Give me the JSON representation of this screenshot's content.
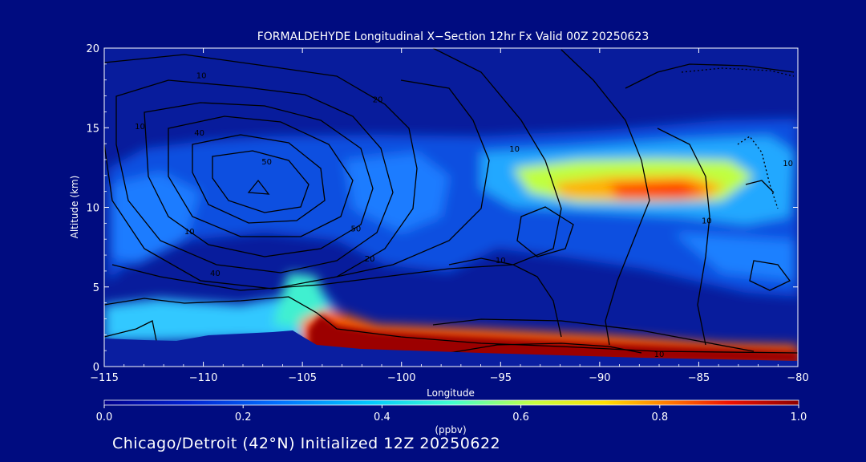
{
  "chart_data": {
    "type": "heatmap",
    "title": "FORMALDEHYDE Longitudinal X−Section 12hr  Fx Valid 00Z 20250623",
    "xlabel": "Longitude",
    "ylabel": "Altitude (km)",
    "xlim": [
      -115,
      -80
    ],
    "ylim": [
      0,
      20
    ],
    "x_ticks": [
      "−115",
      "−110",
      "−105",
      "−100",
      "−95",
      "−90",
      "−85",
      "−80"
    ],
    "x_tick_values": [
      -115,
      -110,
      -105,
      -100,
      -95,
      -90,
      -85,
      -80
    ],
    "y_ticks": [
      "0",
      "5",
      "10",
      "15",
      "20"
    ],
    "y_tick_values": [
      0,
      5,
      10,
      15,
      20
    ],
    "colorbar": {
      "label": "(ppbv)",
      "range": [
        0,
        1
      ],
      "ticks": [
        "0.0",
        "0.2",
        "0.4",
        "0.6",
        "0.8",
        "1.0"
      ],
      "tick_values": [
        0,
        0.2,
        0.4,
        0.6,
        0.8,
        1.0
      ]
    },
    "field_regions": [
      {
        "lon": [
          -114.5,
          -81
        ],
        "alt": [
          7,
          15
        ],
        "value": 0.15
      },
      {
        "lon": [
          -114,
          -103
        ],
        "alt": [
          1.5,
          3.5
        ],
        "value": 0.3
      },
      {
        "lon": [
          -106,
          -104
        ],
        "alt": [
          2,
          5
        ],
        "value": 0.45
      },
      {
        "lon": [
          -95,
          -81
        ],
        "alt": [
          9,
          13
        ],
        "value": 0.55
      },
      {
        "lon": [
          -92,
          -84
        ],
        "alt": [
          10,
          12
        ],
        "value": 0.8
      },
      {
        "lon": [
          -104.5,
          -80
        ],
        "alt": [
          0.3,
          2.5
        ],
        "value": 1.0
      }
    ],
    "contour_labels": [
      {
        "text": "10",
        "lon": -110.1,
        "alt": 18.1
      },
      {
        "text": "20",
        "lon": -101.2,
        "alt": 16.6
      },
      {
        "text": "10",
        "lon": -113.2,
        "alt": 14.9
      },
      {
        "text": "40",
        "lon": -110.2,
        "alt": 14.5
      },
      {
        "text": "50",
        "lon": -106.8,
        "alt": 12.7
      },
      {
        "text": "10",
        "lon": -94.3,
        "alt": 13.5
      },
      {
        "text": "10",
        "lon": -80.5,
        "alt": 12.6
      },
      {
        "text": "10",
        "lon": -110.7,
        "alt": 8.3
      },
      {
        "text": "50",
        "lon": -102.3,
        "alt": 8.5
      },
      {
        "text": "20",
        "lon": -101.6,
        "alt": 6.6
      },
      {
        "text": "40",
        "lon": -109.4,
        "alt": 5.7
      },
      {
        "text": "10",
        "lon": -95,
        "alt": 6.5
      },
      {
        "text": "10",
        "lon": -84.6,
        "alt": 9
      },
      {
        "text": "10",
        "lon": -87,
        "alt": 0.6
      }
    ]
  },
  "footer": "Chicago/Detroit (42°N) Initialized 12Z 20250622",
  "colors": {
    "background": "#000c80",
    "plot_background": "#081c9c",
    "terrain": "#0a1ea0",
    "axes": "#ffffff",
    "contour": "#000000"
  }
}
